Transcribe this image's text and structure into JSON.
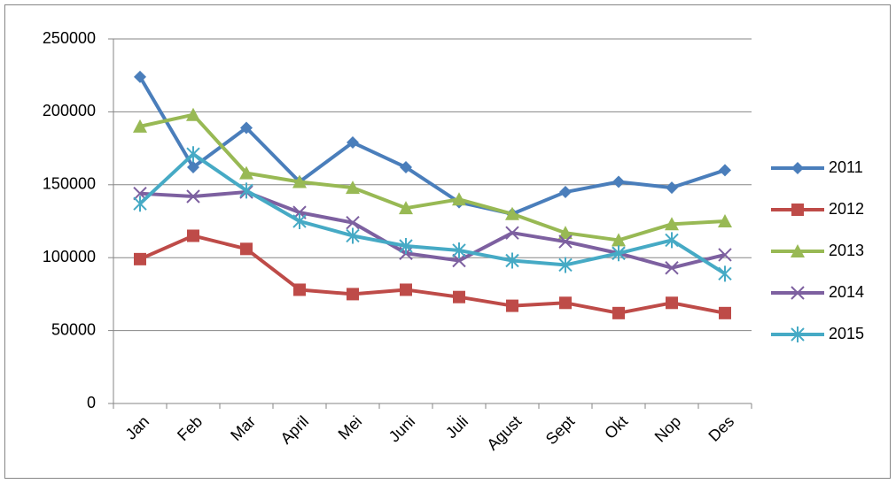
{
  "chart_data": {
    "type": "line",
    "categories": [
      "Jan",
      "Feb",
      "Mar",
      "April",
      "Mei",
      "Juni",
      "Juli",
      "Agust",
      "Sept",
      "Okt",
      "Nop",
      "Des"
    ],
    "series": [
      {
        "name": "2011",
        "color": "#4a7ebb",
        "marker": "diamond",
        "values": [
          224000,
          162000,
          189000,
          152000,
          179000,
          162000,
          138000,
          130000,
          145000,
          152000,
          148000,
          160000
        ]
      },
      {
        "name": "2012",
        "color": "#be4b48",
        "marker": "square",
        "values": [
          99000,
          115000,
          106000,
          78000,
          75000,
          78000,
          73000,
          67000,
          69000,
          62000,
          69000,
          62000
        ]
      },
      {
        "name": "2013",
        "color": "#98b954",
        "marker": "triangle",
        "values": [
          190000,
          198000,
          158000,
          152000,
          148000,
          134000,
          140000,
          130000,
          117000,
          112000,
          123000,
          125000
        ]
      },
      {
        "name": "2014",
        "color": "#7d60a0",
        "marker": "x",
        "values": [
          144000,
          142000,
          145000,
          131000,
          124000,
          103000,
          98000,
          117000,
          111000,
          103000,
          93000,
          102000
        ]
      },
      {
        "name": "2015",
        "color": "#46aac5",
        "marker": "asterisk",
        "values": [
          137000,
          171000,
          146000,
          125000,
          115000,
          108000,
          105000,
          98000,
          95000,
          103000,
          112000,
          89000
        ]
      }
    ],
    "ylim": [
      0,
      250000
    ],
    "yticks": [
      0,
      50000,
      100000,
      150000,
      200000,
      250000
    ],
    "grid": true,
    "legend": "right"
  }
}
